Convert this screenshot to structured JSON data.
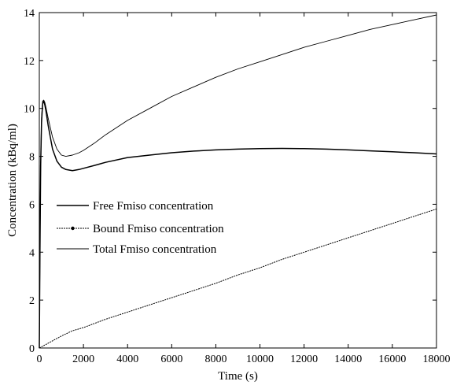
{
  "chart_data": {
    "type": "line",
    "title": "",
    "xlabel": "Time (s)",
    "ylabel": "Concentration (kBq/ml)",
    "xlim": [
      0,
      18000
    ],
    "ylim": [
      0,
      14
    ],
    "xticks": [
      0,
      2000,
      4000,
      6000,
      8000,
      10000,
      12000,
      14000,
      16000,
      18000
    ],
    "yticks": [
      0,
      2,
      4,
      6,
      8,
      10,
      12,
      14
    ],
    "grid": false,
    "legend_position": "center-left",
    "series": [
      {
        "name": "Free Fmiso concentration",
        "style": "solid",
        "color": "#000000",
        "x": [
          0,
          30,
          60,
          100,
          150,
          200,
          250,
          300,
          400,
          500,
          600,
          800,
          1000,
          1200,
          1500,
          1800,
          2000,
          2500,
          3000,
          4000,
          5000,
          6000,
          7000,
          8000,
          9000,
          10000,
          11000,
          12000,
          13000,
          14000,
          15000,
          16000,
          17000,
          18000
        ],
        "y": [
          0,
          4.0,
          7.6,
          9.4,
          10.2,
          10.3,
          10.15,
          9.9,
          9.3,
          8.8,
          8.3,
          7.8,
          7.55,
          7.45,
          7.4,
          7.45,
          7.5,
          7.62,
          7.75,
          7.95,
          8.05,
          8.15,
          8.22,
          8.27,
          8.3,
          8.32,
          8.33,
          8.32,
          8.3,
          8.27,
          8.23,
          8.19,
          8.15,
          8.1
        ]
      },
      {
        "name": "Bound Fmiso concentration",
        "style": "dotted-marker",
        "color": "#000000",
        "x": [
          0,
          200,
          500,
          1000,
          1500,
          2000,
          3000,
          4000,
          5000,
          6000,
          7000,
          8000,
          9000,
          10000,
          11000,
          12000,
          13000,
          14000,
          15000,
          16000,
          17000,
          18000
        ],
        "y": [
          0,
          0.1,
          0.25,
          0.5,
          0.72,
          0.85,
          1.2,
          1.5,
          1.8,
          2.1,
          2.4,
          2.7,
          3.05,
          3.35,
          3.7,
          4.0,
          4.3,
          4.6,
          4.9,
          5.2,
          5.5,
          5.8
        ]
      },
      {
        "name": "Total Fmiso concentration",
        "style": "solid-thin",
        "color": "#000000",
        "x": [
          0,
          30,
          60,
          100,
          150,
          200,
          250,
          300,
          400,
          500,
          600,
          800,
          1000,
          1200,
          1500,
          1800,
          2000,
          2500,
          3000,
          4000,
          5000,
          6000,
          7000,
          8000,
          9000,
          10000,
          11000,
          12000,
          13000,
          14000,
          15000,
          16000,
          17000,
          18000
        ],
        "y": [
          0,
          4.0,
          7.7,
          9.6,
          10.3,
          10.35,
          10.25,
          10.05,
          9.6,
          9.2,
          8.8,
          8.3,
          8.05,
          8.0,
          8.05,
          8.15,
          8.25,
          8.55,
          8.9,
          9.5,
          10.0,
          10.5,
          10.9,
          11.3,
          11.65,
          11.95,
          12.25,
          12.55,
          12.8,
          13.05,
          13.3,
          13.5,
          13.7,
          13.9
        ]
      }
    ]
  }
}
